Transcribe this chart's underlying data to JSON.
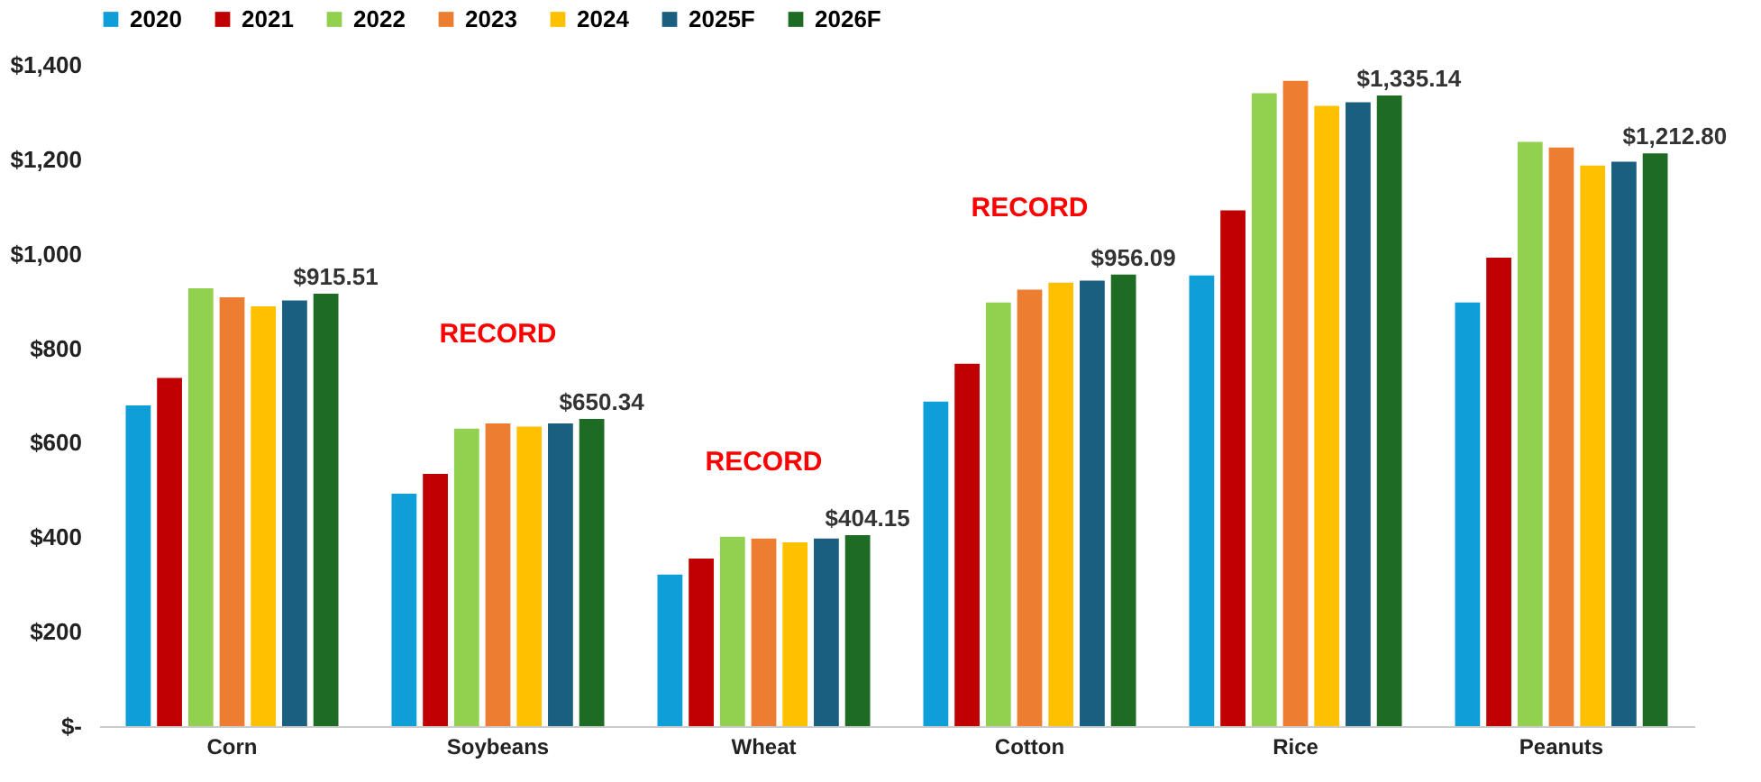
{
  "chart_data": {
    "type": "bar",
    "categories": [
      "Corn",
      "Soybeans",
      "Wheat",
      "Cotton",
      "Rice",
      "Peanuts"
    ],
    "series": [
      {
        "name": "2020",
        "color": "#0e9ed8",
        "values": [
          679,
          492,
          321,
          687,
          954,
          897
        ]
      },
      {
        "name": "2021",
        "color": "#c00000",
        "values": [
          737,
          534,
          355,
          767,
          1092,
          992
        ]
      },
      {
        "name": "2022",
        "color": "#92d050",
        "values": [
          927,
          630,
          401,
          897,
          1340,
          1237
        ]
      },
      {
        "name": "2023",
        "color": "#ed7d31",
        "values": [
          908,
          641,
          397,
          924,
          1366,
          1225
        ]
      },
      {
        "name": "2024",
        "color": "#ffc000",
        "values": [
          889,
          634,
          389,
          939,
          1313,
          1187
        ]
      },
      {
        "name": "2025F",
        "color": "#1a5e80",
        "values": [
          901,
          641,
          397,
          943,
          1321,
          1195
        ]
      },
      {
        "name": "2026F",
        "color": "#1e6b24",
        "values": [
          915.51,
          650.34,
          404.15,
          956.09,
          1335.14,
          1212.8
        ],
        "value_labels": [
          "$915.51",
          "$650.34",
          "$404.15",
          "$956.09",
          "$1,335.14",
          "$1,212.80"
        ]
      }
    ],
    "ylim": [
      0,
      1400
    ],
    "yticks": [
      {
        "value": 0,
        "label": "$-"
      },
      {
        "value": 200,
        "label": "$200"
      },
      {
        "value": 400,
        "label": "$400"
      },
      {
        "value": 600,
        "label": "$600"
      },
      {
        "value": 800,
        "label": "$800"
      },
      {
        "value": 1000,
        "label": "$1,000"
      },
      {
        "value": 1200,
        "label": "$1,200"
      },
      {
        "value": 1400,
        "label": "$1,400"
      }
    ],
    "annotations": [
      "RECORD",
      "RECORD",
      "RECORD"
    ],
    "grid": false,
    "legend": "top"
  }
}
